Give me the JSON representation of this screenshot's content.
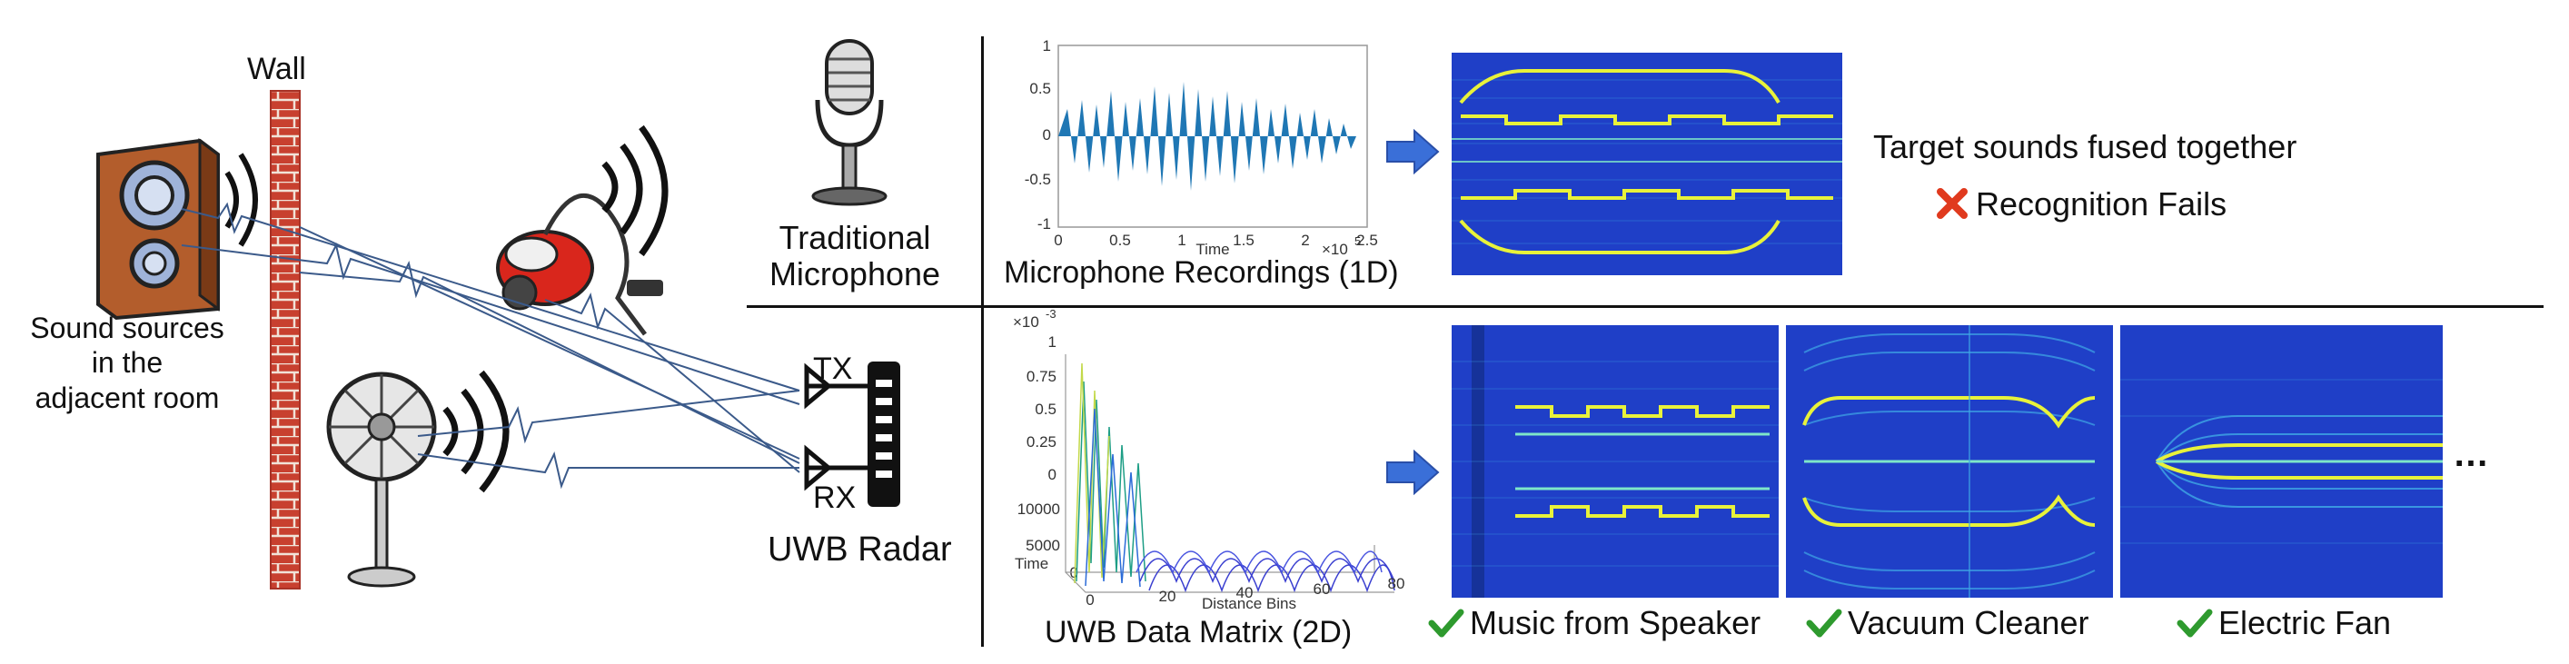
{
  "scene": {
    "wall_label": "Wall",
    "sources_label": [
      "Sound sources",
      "in the",
      "adjacent room"
    ],
    "tx_label": "TX",
    "rx_label": "RX",
    "radar_label": "UWB Radar"
  },
  "top_row": {
    "mic_label": [
      "Traditional",
      "Microphone"
    ],
    "waveform_caption": "Microphone Recordings (1D)",
    "waveform_axis": {
      "y_ticks": [
        "1",
        "0.5",
        "0",
        "-0.5",
        "-1"
      ],
      "x_ticks": [
        "0",
        "0.5",
        "1",
        "1.5",
        "2",
        "2.5"
      ],
      "x_label": "Time",
      "x_multiplier": "×10",
      "x_exponent": "5"
    },
    "result_line1": "Target sounds fused together",
    "result_line2": "Recognition Fails"
  },
  "bottom_row": {
    "matrix_caption": "UWB Data Matrix (2D)",
    "matrix_axis": {
      "z_multiplier": "×10",
      "z_exponent": "-3",
      "z_ticks": [
        "1",
        "0.75",
        "0.5",
        "0.25",
        "0"
      ],
      "time_ticks": [
        "10000",
        "5000",
        "0"
      ],
      "time_label": "Time",
      "bin_ticks": [
        "0",
        "20",
        "40",
        "60",
        "80"
      ],
      "bin_label": "Distance Bins"
    },
    "outputs": [
      {
        "label": "Music from Speaker"
      },
      {
        "label": "Vacuum Cleaner"
      },
      {
        "label": "Electric Fan"
      }
    ],
    "ellipsis": "…"
  },
  "colors": {
    "spec_bg": "#1f3fc7",
    "spec_line": "#e8f23a",
    "waveform": "#1f77b4",
    "arrow": "#3a6fd8",
    "check": "#2e9a2e",
    "cross": "#e03a1e",
    "brick": "#c0392b"
  }
}
